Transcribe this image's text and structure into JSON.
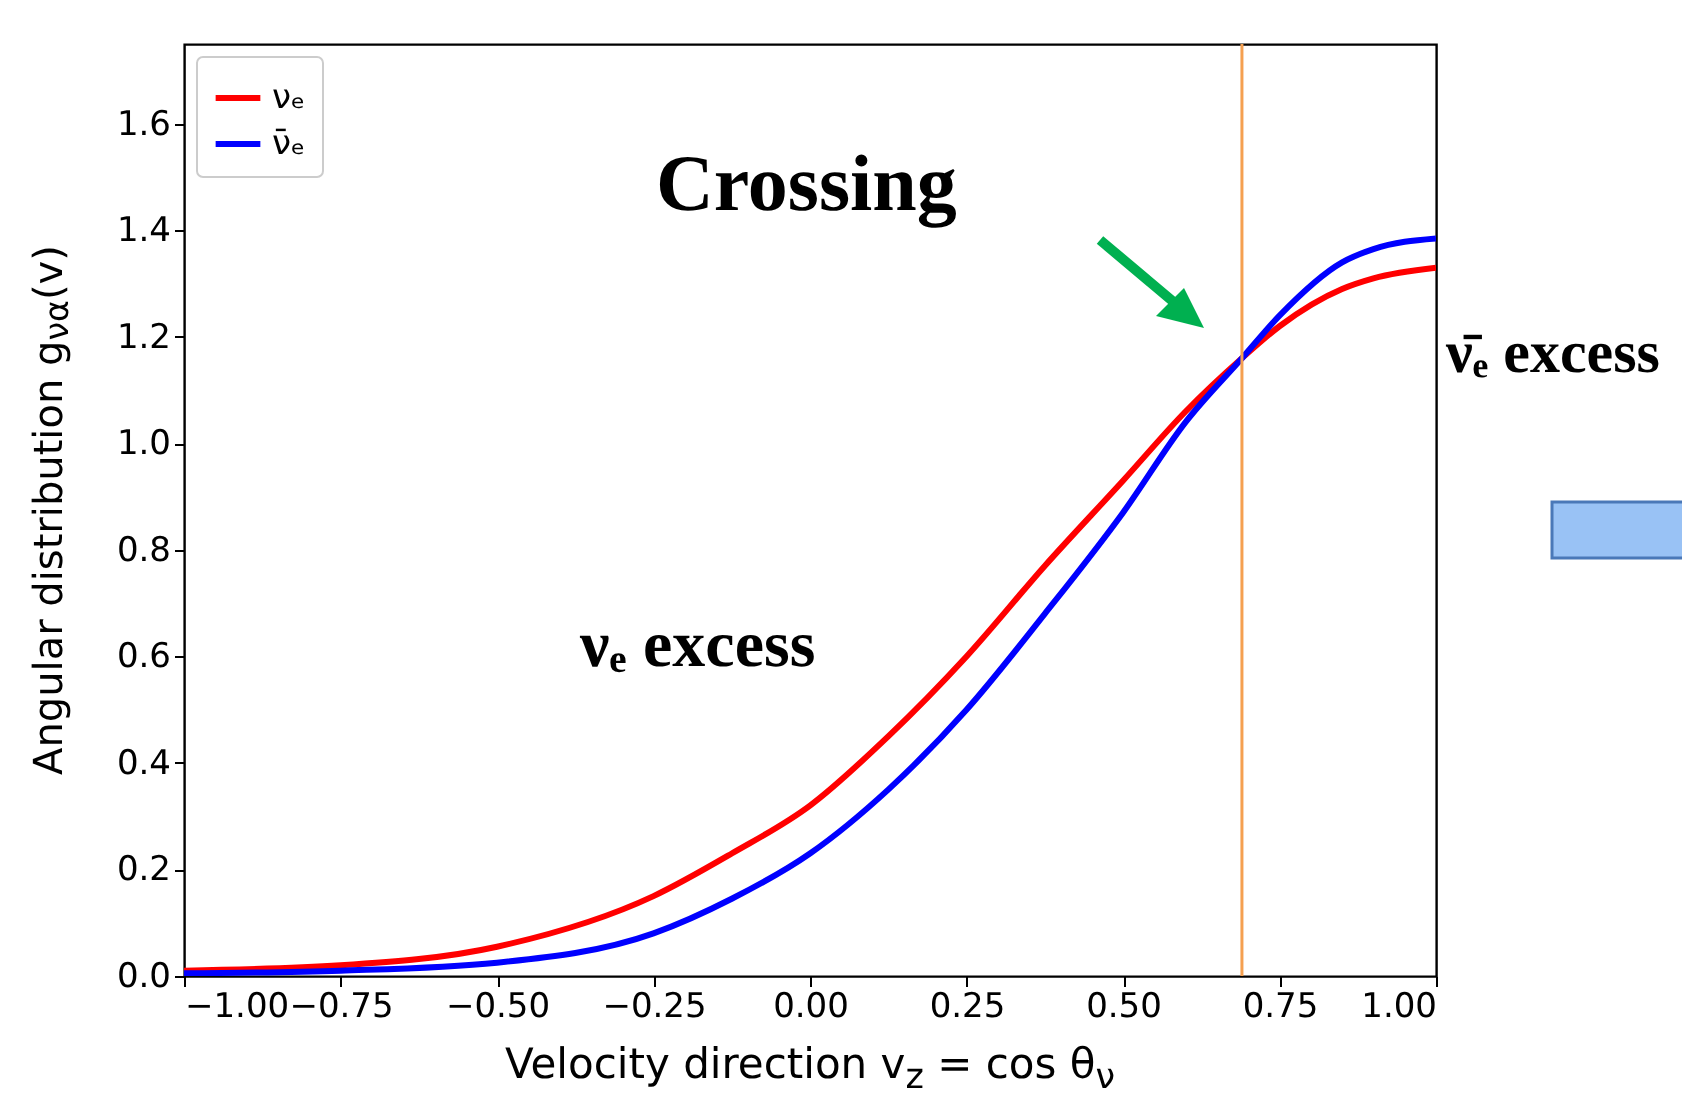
{
  "chart_data": {
    "type": "line",
    "xlabel": "Velocity direction v$_{z}$ = cos θ$_{ν}$",
    "ylabel": "Angular distribution g$_{να}$(v)",
    "xlim": [
      -1,
      1
    ],
    "xticks": [
      {
        "value": -1,
        "label": "−1.00"
      },
      {
        "value": -0.75,
        "label": "−0.75"
      },
      {
        "value": -0.5,
        "label": "−0.50"
      },
      {
        "value": -0.25,
        "label": "−0.25"
      },
      {
        "value": 0,
        "label": "0.00"
      },
      {
        "value": 0.25,
        "label": "0.25"
      },
      {
        "value": 0.5,
        "label": "0.50"
      },
      {
        "value": 0.75,
        "label": "0.75"
      },
      {
        "value": 1,
        "label": "1.00"
      }
    ],
    "ylim": [
      0,
      1.75
    ],
    "yticks": [
      {
        "value": 0,
        "label": "0.0"
      },
      0.2,
      0.4,
      0.6,
      0.8,
      {
        "value": 1,
        "label": "1.0"
      },
      1.2,
      1.4,
      1.6
    ],
    "x": [
      -1,
      -0.75,
      -0.5,
      -0.25,
      -0.125,
      0,
      0.125,
      0.25,
      0.375,
      0.5,
      0.6,
      0.69,
      0.75,
      0.85,
      0.9,
      1
    ],
    "series": [
      {
        "name": "νₑ",
        "color": "#ff0000",
        "values": [
          0.01,
          0.02,
          0.055,
          0.15,
          0.23,
          0.32,
          0.45,
          0.6,
          0.77,
          0.93,
          1.06,
          1.16,
          1.22,
          1.29,
          1.31,
          1.33
        ]
      },
      {
        "name": "ν̄ₑ",
        "color": "#0000ff",
        "values": [
          0.005,
          0.01,
          0.025,
          0.08,
          0.145,
          0.23,
          0.35,
          0.5,
          0.68,
          0.87,
          1.04,
          1.16,
          1.24,
          1.34,
          1.365,
          1.385
        ]
      }
    ],
    "ref_lines": [
      {
        "axis": "x",
        "value": 0.69,
        "color": "#f5a050"
      }
    ],
    "annotations": [
      "Crossing",
      "ν̄ₑ excess",
      "νₑ excess"
    ],
    "legend": "top left",
    "grid": false
  }
}
